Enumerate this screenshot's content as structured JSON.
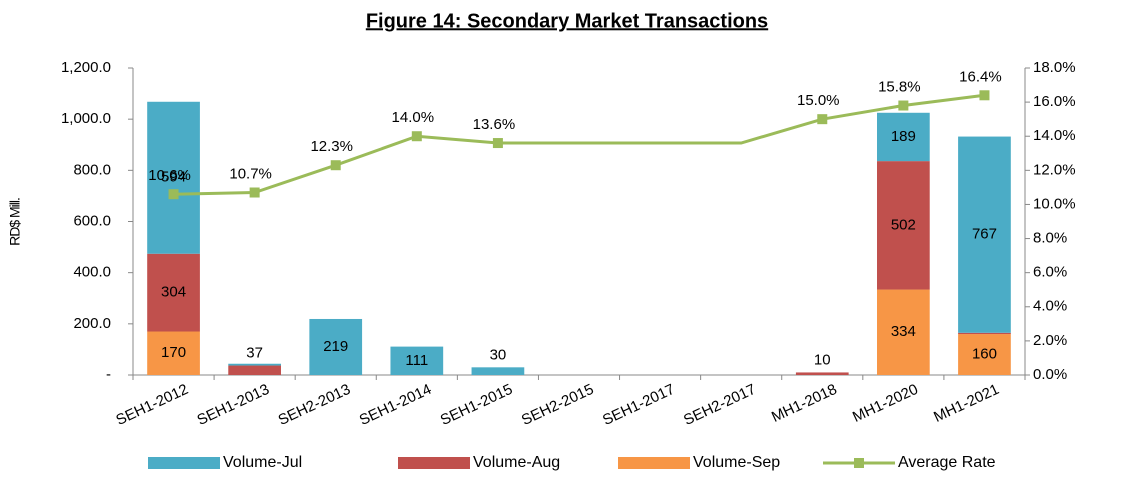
{
  "chart_data": {
    "type": "bar",
    "stacked": true,
    "title": "Figure 14: Secondary Market Transactions",
    "y_label": "RD$ Mill.",
    "categories": [
      "SEH1-2012",
      "SEH1-2013",
      "SEH2-2013",
      "SEH1-2014",
      "SEH1-2015",
      "SEH2-2015",
      "SEH1-2017",
      "SEH2-2017",
      "MH1-2018",
      "MH1-2020",
      "MH1-2021"
    ],
    "series": [
      {
        "name": "Volume-Jul",
        "color": "#4bacc6",
        "values": [
          594,
          7,
          219,
          111,
          30,
          0,
          0,
          0,
          0,
          189,
          767
        ],
        "value_labels": [
          "594",
          null,
          "219",
          "111",
          "30",
          null,
          null,
          null,
          null,
          "189",
          "767"
        ]
      },
      {
        "name": "Volume-Aug",
        "color": "#c0504d",
        "values": [
          304,
          37,
          0,
          0,
          0,
          0,
          0,
          0,
          10,
          502,
          5
        ],
        "value_labels": [
          "304",
          "37",
          null,
          null,
          null,
          null,
          null,
          null,
          "10",
          "502",
          "5"
        ]
      },
      {
        "name": "Volume-Sep",
        "color": "#f79646",
        "values": [
          170,
          0,
          0,
          0,
          0,
          0,
          0,
          0,
          0,
          334,
          160
        ],
        "value_labels": [
          "170",
          null,
          null,
          null,
          null,
          null,
          null,
          null,
          null,
          "334",
          "160"
        ]
      },
      {
        "name": "Average Rate",
        "color": "#9bbb59",
        "type": "line",
        "axis": "y2",
        "values": [
          10.6,
          10.7,
          12.3,
          14.0,
          13.6,
          13.6,
          13.6,
          13.6,
          15.0,
          15.8,
          16.4
        ],
        "value_labels": [
          "10.6%",
          "10.7%",
          "12.3%",
          "14.0%",
          "13.6%",
          null,
          null,
          null,
          "15.0%",
          "15.8%",
          "16.4%"
        ]
      }
    ],
    "stack_order": [
      "Volume-Sep",
      "Volume-Aug",
      "Volume-Jul"
    ],
    "ylim": [
      0,
      1200
    ],
    "yticks": [
      {
        "value": 0,
        "label": "-"
      },
      {
        "value": 200,
        "label": "200.0"
      },
      {
        "value": 400,
        "label": "400.0"
      },
      {
        "value": 600,
        "label": "600.0"
      },
      {
        "value": 800,
        "label": "800.0"
      },
      {
        "value": 1000,
        "label": "1,000.0"
      },
      {
        "value": 1200,
        "label": "1,200.0"
      }
    ],
    "y2lim": [
      0,
      18
    ],
    "y2ticks": [
      {
        "value": 0,
        "label": "0.0%"
      },
      {
        "value": 2,
        "label": "2.0%"
      },
      {
        "value": 4,
        "label": "4.0%"
      },
      {
        "value": 6,
        "label": "6.0%"
      },
      {
        "value": 8,
        "label": "8.0%"
      },
      {
        "value": 10,
        "label": "10.0%"
      },
      {
        "value": 12,
        "label": "12.0%"
      },
      {
        "value": 14,
        "label": "14.0%"
      },
      {
        "value": 16,
        "label": "16.0%"
      },
      {
        "value": 18,
        "label": "18.0%"
      }
    ],
    "grid": false,
    "legend": "bottom"
  }
}
